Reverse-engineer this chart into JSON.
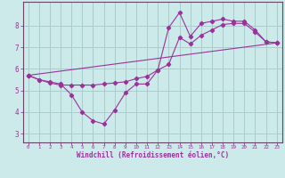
{
  "xlabel": "Windchill (Refroidissement éolien,°C)",
  "background_color": "#cceaea",
  "grid_color": "#aacccc",
  "line_color": "#993399",
  "spine_color": "#664466",
  "xlim": [
    -0.5,
    23.5
  ],
  "ylim": [
    2.6,
    9.1
  ],
  "yticks": [
    3,
    4,
    5,
    6,
    7,
    8
  ],
  "xticks": [
    0,
    1,
    2,
    3,
    4,
    5,
    6,
    7,
    8,
    9,
    10,
    11,
    12,
    13,
    14,
    15,
    16,
    17,
    18,
    19,
    20,
    21,
    22,
    23
  ],
  "line1_x": [
    0,
    1,
    2,
    3,
    4,
    5,
    6,
    7,
    8,
    9,
    10,
    11,
    12,
    13,
    14,
    15,
    16,
    17,
    18,
    19,
    20,
    21,
    22,
    23
  ],
  "line1_y": [
    5.7,
    5.5,
    5.4,
    5.3,
    4.8,
    4.0,
    3.6,
    3.45,
    4.1,
    4.9,
    5.3,
    5.3,
    5.95,
    7.9,
    8.6,
    7.5,
    8.1,
    8.2,
    8.3,
    8.2,
    8.2,
    7.8,
    7.25,
    7.2
  ],
  "line2_x": [
    0,
    1,
    2,
    3,
    4,
    5,
    6,
    7,
    8,
    9,
    10,
    11,
    12,
    13,
    14,
    15,
    16,
    17,
    18,
    19,
    20,
    21,
    22,
    23
  ],
  "line2_y": [
    5.7,
    5.5,
    5.35,
    5.25,
    5.25,
    5.25,
    5.25,
    5.3,
    5.35,
    5.4,
    5.55,
    5.65,
    5.95,
    6.2,
    7.45,
    7.15,
    7.55,
    7.8,
    8.05,
    8.1,
    8.1,
    7.7,
    7.25,
    7.2
  ],
  "line3_x": [
    0,
    23
  ],
  "line3_y": [
    5.7,
    7.2
  ]
}
